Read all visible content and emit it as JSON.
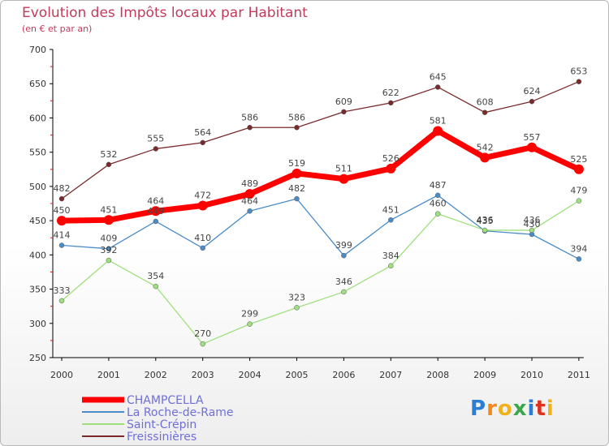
{
  "chart_data": {
    "type": "line",
    "title": "Evolution des Impôts locaux par Habitant",
    "subtitle": "(en € et par an)",
    "xlabel": "",
    "ylabel": "",
    "x": [
      "2000",
      "2001",
      "2002",
      "2003",
      "2004",
      "2005",
      "2006",
      "2007",
      "2008",
      "2009",
      "2010",
      "2011"
    ],
    "ylim": [
      250,
      700
    ],
    "yticks": [
      250,
      300,
      350,
      400,
      450,
      500,
      550,
      600,
      650,
      700
    ],
    "grid": false,
    "legend_position": "bottom-left",
    "series": [
      {
        "name": "CHAMPCELLA",
        "color": "#ff0000",
        "values": [
          450,
          451,
          464,
          472,
          489,
          519,
          511,
          526,
          581,
          542,
          557,
          525
        ]
      },
      {
        "name": "La Roche-de-Rame",
        "color": "#4a8cc8",
        "values": [
          414,
          409,
          449,
          410,
          464,
          482,
          399,
          451,
          487,
          435,
          430,
          394
        ]
      },
      {
        "name": "Saint-Crépin",
        "color": "#9ee07e",
        "values": [
          333,
          392,
          354,
          270,
          299,
          323,
          346,
          384,
          460,
          436,
          436,
          479
        ]
      },
      {
        "name": "Freissinières",
        "color": "#7a2a2a",
        "values": [
          482,
          532,
          555,
          564,
          586,
          586,
          609,
          622,
          645,
          608,
          624,
          653
        ]
      }
    ]
  },
  "logo": {
    "text": "Proxiti",
    "letters": [
      "P",
      "r",
      "o",
      "x",
      "i",
      "t",
      "i"
    ],
    "colors": [
      "#2a7fd4",
      "#f08a1c",
      "#f0b21c",
      "#3aa84a",
      "#2a7fd4",
      "#e0301e",
      "#f0b21c"
    ]
  }
}
